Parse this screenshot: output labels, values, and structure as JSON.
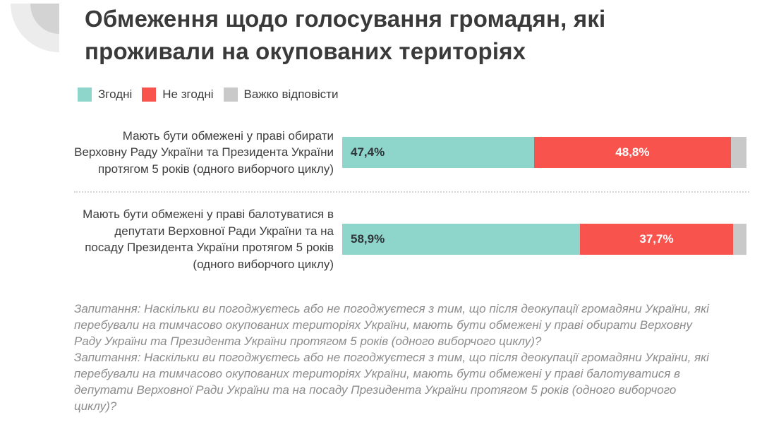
{
  "page": {
    "title_line1": "Обмеження щодо голосування громадян, які",
    "title_line2": "проживали на окупованих територіях"
  },
  "chart_data": {
    "type": "bar",
    "orientation": "horizontal",
    "stacked": true,
    "unit": "%",
    "xlim": [
      0,
      100
    ],
    "legend_position": "top",
    "categories": [
      "Мають бути обмежені у праві обирати Верховну Раду України та Президента України протягом 5 років (одного виборчого циклу)",
      "Мають бути обмежені у праві балотуватися в депутати Верховної Ради України та на посаду Президента України протягом 5 років (одного виборчого циклу)"
    ],
    "series": [
      {
        "name": "Згодні",
        "color": "#8ED5CB",
        "values": [
          47.4,
          58.9
        ],
        "value_labels": [
          "47,4%",
          "58,9%"
        ]
      },
      {
        "name": "Не згодні",
        "color": "#F9534E",
        "values": [
          48.8,
          37.7
        ],
        "value_labels": [
          "48,8%",
          "37,7%"
        ]
      },
      {
        "name": "Важко відповісти",
        "color": "#C9C9C9",
        "values": [
          3.8,
          3.4
        ],
        "value_labels": [
          "",
          ""
        ]
      }
    ]
  },
  "footnotes": [
    "Запитання: Наскільки ви погоджуєтесь або не погоджуєтеся з тим, що після деокупації громадяни України, які перебували на тимчасово окупованих територіях України, мають бути обмежені у праві обирати Верховну Раду України та Президента України протягом 5 років (одного виборчого циклу)?",
    "Запитання: Наскільки ви погоджуєтесь або не погоджуєтеся з тим, що після деокупації громадяни України, які перебували на тимчасово окупованих територіях України, мають бути обмежені у праві балотуватися в депутати Верховної Ради України та на посаду Президента України протягом 5 років (одного виборчого циклу)?"
  ],
  "colors": {
    "agree": "#8ED5CB",
    "disagree": "#F9534E",
    "hard_to_answer": "#C9C9C9",
    "title_text": "#3A3A3A",
    "footnote_text": "#8C8C8C"
  }
}
